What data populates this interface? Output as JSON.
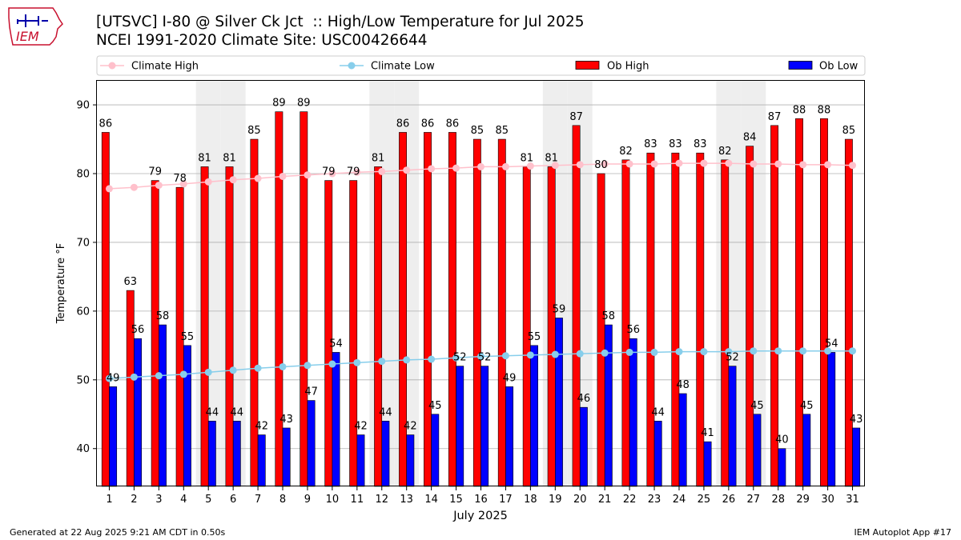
{
  "title_line1": "[UTSVC] I-80 @ Silver Ck Jct  :: High/Low Temperature for Jul 2025",
  "title_line2": "NCEI 1991-2020 Climate Site: USC00426644",
  "logo_text": "IEM",
  "footer_left": "Generated at 22 Aug 2025 9:21 AM CDT in 0.50s",
  "footer_right": "IEM Autoplot App #17",
  "colors": {
    "ob_high": "#ff0000",
    "ob_low": "#0000ff",
    "climate_high": "#ffc0cb",
    "climate_low": "#87ceeb",
    "weekend_shade": "#eeeeee",
    "grid": "#b0b0b0"
  },
  "chart_data": {
    "type": "bar",
    "xlabel": "July 2025",
    "ylabel": "Temperature °F",
    "ylim": [
      34.5,
      93.5
    ],
    "yticks": [
      40,
      50,
      60,
      70,
      80,
      90
    ],
    "grid": "horizontal",
    "legend_position": "top",
    "legend": [
      "Climate High",
      "Climate Low",
      "Ob High",
      "Ob Low"
    ],
    "days": [
      1,
      2,
      3,
      4,
      5,
      6,
      7,
      8,
      9,
      10,
      11,
      12,
      13,
      14,
      15,
      16,
      17,
      18,
      19,
      20,
      21,
      22,
      23,
      24,
      25,
      26,
      27,
      28,
      29,
      30,
      31
    ],
    "shaded_weekend_days": [
      5,
      6,
      12,
      13,
      19,
      20,
      26,
      27
    ],
    "series": [
      {
        "name": "Ob High",
        "kind": "bar",
        "values": [
          86,
          63,
          79,
          78,
          81,
          81,
          85,
          89,
          89,
          79,
          79,
          81,
          86,
          86,
          86,
          85,
          85,
          81,
          81,
          87,
          80,
          82,
          83,
          83,
          83,
          82,
          84,
          87,
          88,
          88,
          85
        ]
      },
      {
        "name": "Ob Low",
        "kind": "bar",
        "values": [
          49,
          56,
          58,
          55,
          44,
          44,
          42,
          43,
          47,
          54,
          42,
          44,
          42,
          45,
          52,
          52,
          49,
          55,
          59,
          46,
          58,
          56,
          44,
          48,
          41,
          52,
          45,
          40,
          45,
          54,
          43
        ]
      },
      {
        "name": "Climate High",
        "kind": "line",
        "values": [
          77.8,
          78.0,
          78.3,
          78.5,
          78.8,
          79.1,
          79.3,
          79.6,
          79.8,
          80.0,
          80.2,
          80.3,
          80.5,
          80.7,
          80.8,
          81.0,
          81.0,
          81.1,
          81.2,
          81.3,
          81.4,
          81.4,
          81.4,
          81.5,
          81.5,
          81.5,
          81.4,
          81.4,
          81.3,
          81.3,
          81.2
        ]
      },
      {
        "name": "Climate Low",
        "kind": "line",
        "values": [
          50.2,
          50.4,
          50.6,
          50.8,
          51.1,
          51.4,
          51.7,
          51.9,
          52.1,
          52.3,
          52.5,
          52.7,
          52.9,
          53.0,
          53.2,
          53.4,
          53.5,
          53.6,
          53.7,
          53.8,
          53.9,
          54.0,
          54.0,
          54.1,
          54.1,
          54.1,
          54.2,
          54.2,
          54.2,
          54.2,
          54.2
        ]
      }
    ]
  }
}
